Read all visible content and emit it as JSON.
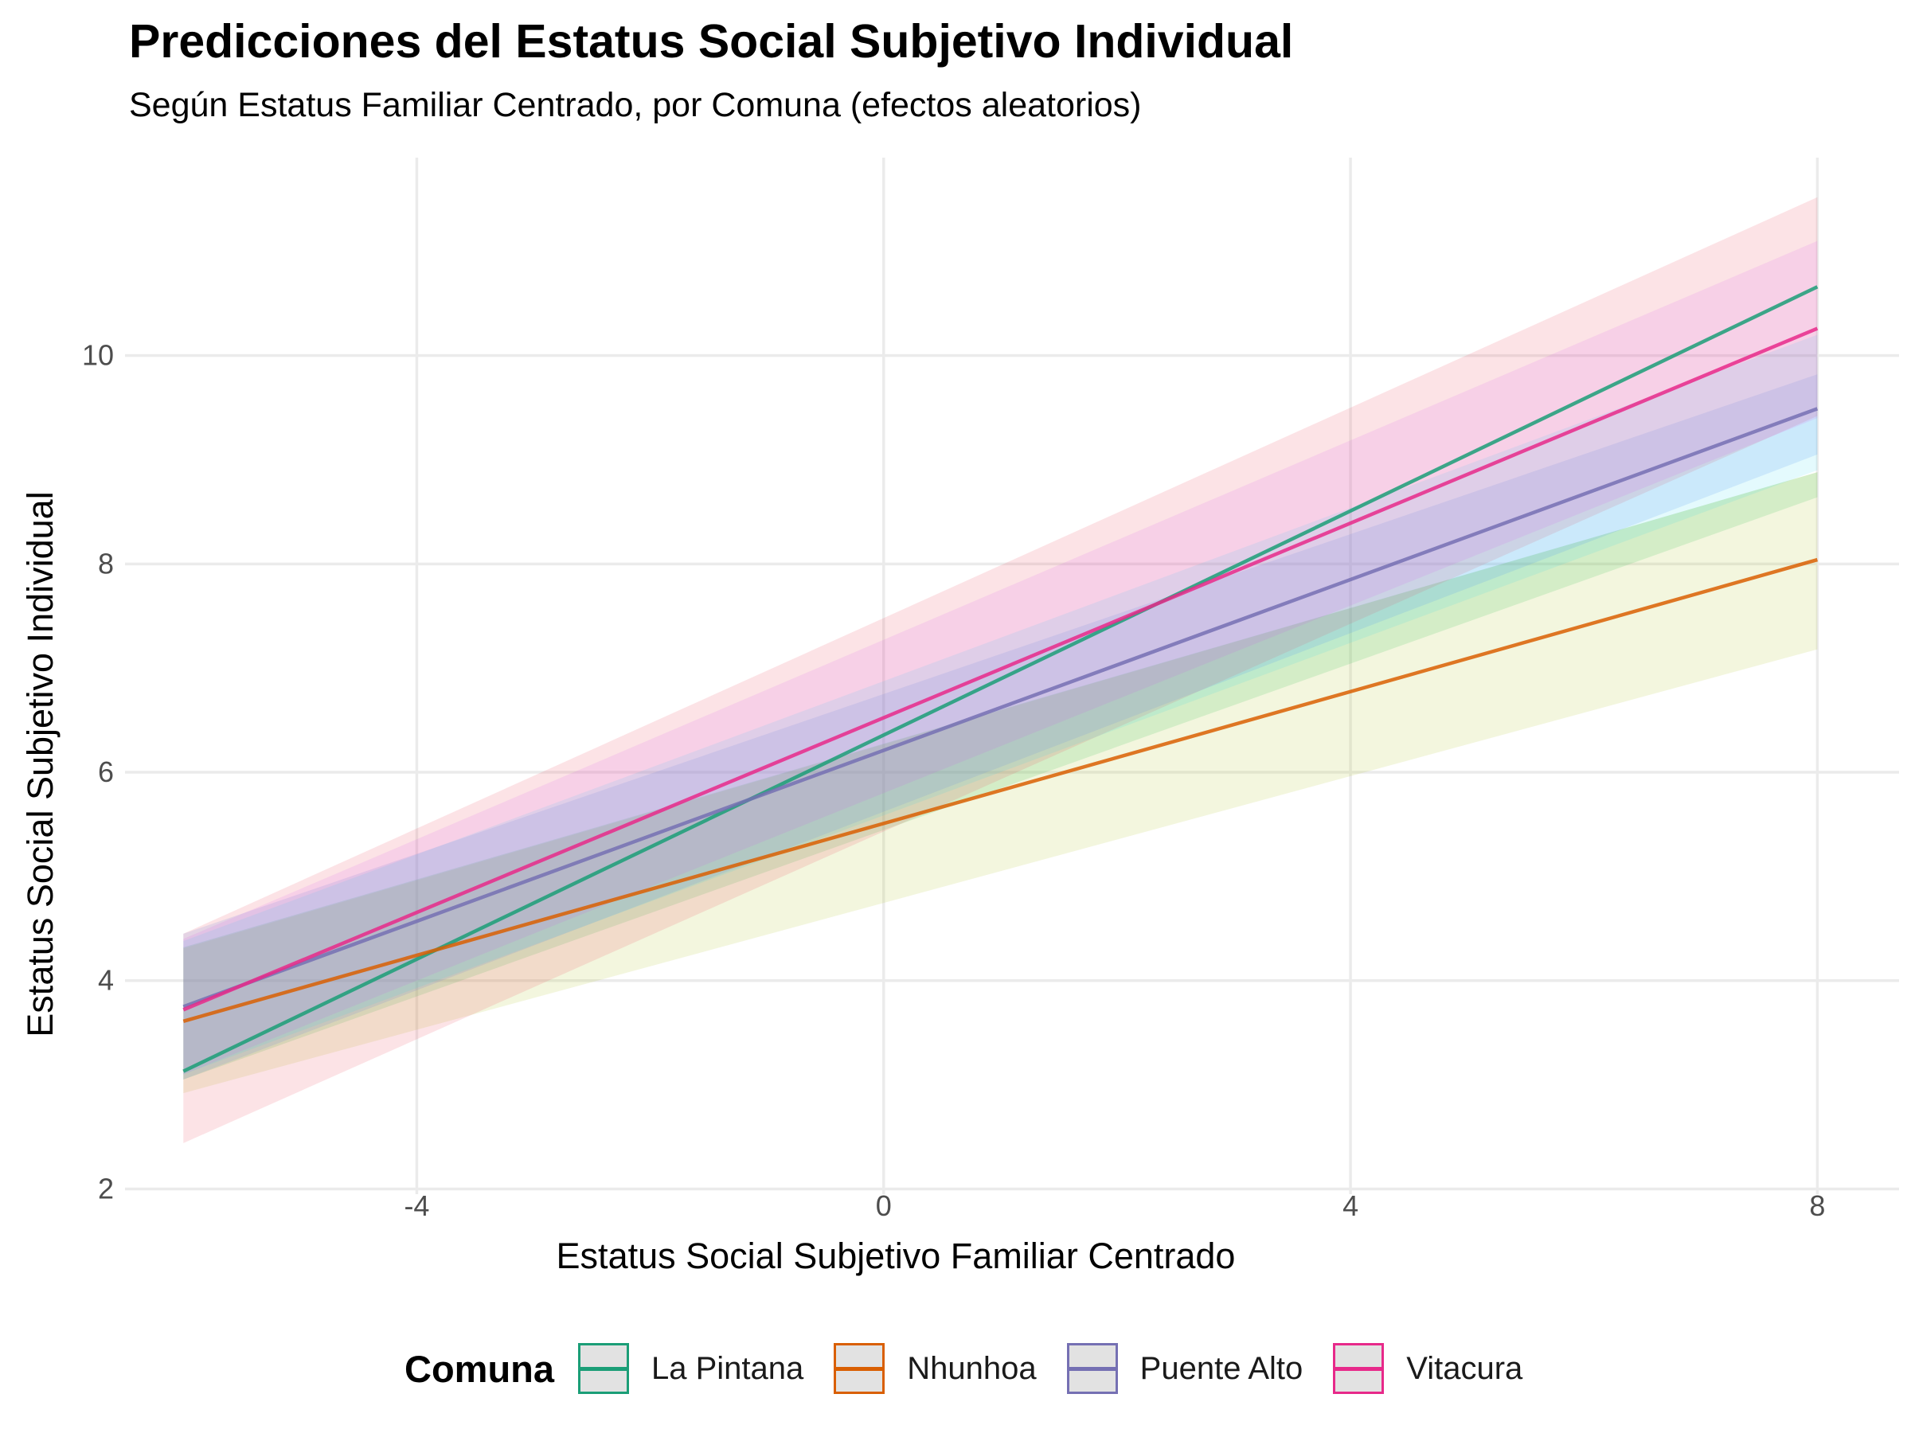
{
  "title": "Predicciones del Estatus Social Subjetivo Individual",
  "subtitle": "Según Estatus Familiar Centrado, por Comuna (efectos aleatorios)",
  "chart_data": {
    "type": "line",
    "title": "Predicciones del Estatus Social Subjetivo Individual",
    "subtitle": "Según Estatus Familiar Centrado, por Comuna (efectos aleatorios)",
    "xlabel": "Estatus Social Subjetivo Familiar Centrado",
    "ylabel": "Estatus Social Subjetivo Individual",
    "xlim": [
      -6.5,
      8.7
    ],
    "ylim": [
      1.95,
      11.9
    ],
    "x_ticks": [
      -4,
      0,
      4,
      8
    ],
    "x_tick_labels": [
      "-4",
      "0",
      "4",
      "8"
    ],
    "y_ticks": [
      2,
      4,
      6,
      8,
      10
    ],
    "y_tick_labels": [
      "2",
      "4",
      "6",
      "8",
      "10"
    ],
    "grid": true,
    "legend_title": "Comuna",
    "legend_position": "bottom",
    "x": [
      -6,
      8
    ],
    "series": [
      {
        "name": "La Pintana",
        "color": "#1b9e77",
        "ribbon_color": "#22c55e",
        "y": [
          3.13,
          10.66
        ],
        "lower": [
          3.05,
          8.64
        ],
        "upper": [
          4.32,
          8.88
        ]
      },
      {
        "name": "Nhunhoa",
        "color": "#d95f02",
        "ribbon_color": "#b5cc3a",
        "y": [
          3.61,
          8.04
        ],
        "lower": [
          2.92,
          7.18
        ],
        "upper": [
          4.31,
          8.88
        ]
      },
      {
        "name": "Puente Alto",
        "color": "#7570b3",
        "ribbon_color": "#5b8ef5",
        "y": [
          3.75,
          9.49
        ],
        "lower": [
          3.05,
          9.05
        ],
        "upper": [
          4.45,
          9.82
        ]
      },
      {
        "name": "Vitacura",
        "color": "#e7298a",
        "ribbon_color": "#f05a6a",
        "y": [
          3.72,
          10.26
        ],
        "lower": [
          2.44,
          9.42
        ],
        "upper": [
          4.45,
          11.52
        ]
      }
    ],
    "extra_ribbons": [
      {
        "color": "#22d3ee",
        "lower": [
          3.1,
          8.9
        ],
        "upper": [
          4.38,
          10.2
        ]
      },
      {
        "color": "#d946ef",
        "lower": [
          3.1,
          9.4
        ],
        "upper": [
          4.4,
          11.1
        ]
      }
    ]
  }
}
